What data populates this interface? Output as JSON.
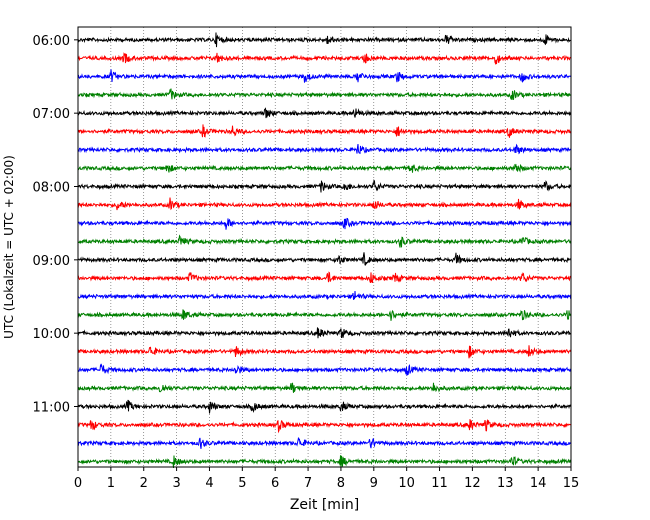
{
  "chart_data": {
    "type": "line",
    "subtype": "helicorder-seismogram",
    "xlabel": "Zeit  [min]",
    "ylabel": "UTC (Lokalzeit = UTC + 02:00)",
    "xlim": [
      0,
      15
    ],
    "x_ticks": [
      "0",
      "1",
      "2",
      "3",
      "4",
      "5",
      "6",
      "7",
      "8",
      "9",
      "10",
      "11",
      "12",
      "13",
      "14",
      "15"
    ],
    "y_tick_labels": [
      "06:00",
      "07:00",
      "08:00",
      "09:00",
      "10:00",
      "11:00"
    ],
    "y_tick_rows": [
      0,
      4,
      8,
      12,
      16,
      20
    ],
    "grid": "vertical dotted at each minute",
    "trace_colors": [
      "#000000",
      "#ff0000",
      "#0000ff",
      "#008000"
    ],
    "rows": [
      {
        "start": "06:00",
        "events": [
          4.2,
          7.6,
          11.2,
          14.2
        ]
      },
      {
        "start": "06:15",
        "events": [
          1.4,
          4.2,
          8.7,
          12.7
        ]
      },
      {
        "start": "06:30",
        "events": [
          1.0,
          6.9,
          8.5,
          9.7,
          13.5
        ]
      },
      {
        "start": "06:45",
        "events": [
          2.8,
          13.2
        ]
      },
      {
        "start": "07:00",
        "events": [
          5.7,
          8.4
        ]
      },
      {
        "start": "07:15",
        "events": [
          3.8,
          4.7,
          9.7,
          13.1
        ]
      },
      {
        "start": "07:30",
        "events": [
          8.5,
          13.3
        ]
      },
      {
        "start": "07:45",
        "events": [
          2.7,
          10.1,
          13.3
        ]
      },
      {
        "start": "08:00",
        "events": [
          7.4,
          8.1,
          9.0,
          14.2
        ]
      },
      {
        "start": "08:15",
        "events": [
          1.2,
          2.8,
          9.0,
          13.4
        ]
      },
      {
        "start": "08:30",
        "events": [
          4.5,
          8.1
        ]
      },
      {
        "start": "08:45",
        "events": [
          3.1,
          9.8,
          13.5
        ]
      },
      {
        "start": "09:00",
        "events": [
          7.9,
          8.7,
          11.5
        ]
      },
      {
        "start": "09:15",
        "events": [
          3.4,
          7.6,
          8.9,
          9.6,
          13.5
        ]
      },
      {
        "start": "09:30",
        "events": [
          8.4
        ]
      },
      {
        "start": "09:45",
        "events": [
          3.2,
          9.5,
          13.5,
          14.9
        ]
      },
      {
        "start": "10:00",
        "events": [
          7.3,
          8.0,
          13.1
        ]
      },
      {
        "start": "10:15",
        "events": [
          2.2,
          4.8,
          11.9,
          13.7
        ]
      },
      {
        "start": "10:30",
        "events": [
          0.7,
          4.8,
          10.0
        ]
      },
      {
        "start": "10:45",
        "events": [
          2.5,
          6.5,
          10.8
        ]
      },
      {
        "start": "11:00",
        "events": [
          1.5,
          4.0,
          5.3,
          8.0
        ]
      },
      {
        "start": "11:15",
        "events": [
          0.4,
          6.1,
          11.9,
          12.4
        ]
      },
      {
        "start": "11:30",
        "events": [
          3.7,
          6.7,
          8.9
        ]
      },
      {
        "start": "11:45",
        "events": [
          2.9,
          8.0,
          13.2
        ]
      }
    ]
  }
}
